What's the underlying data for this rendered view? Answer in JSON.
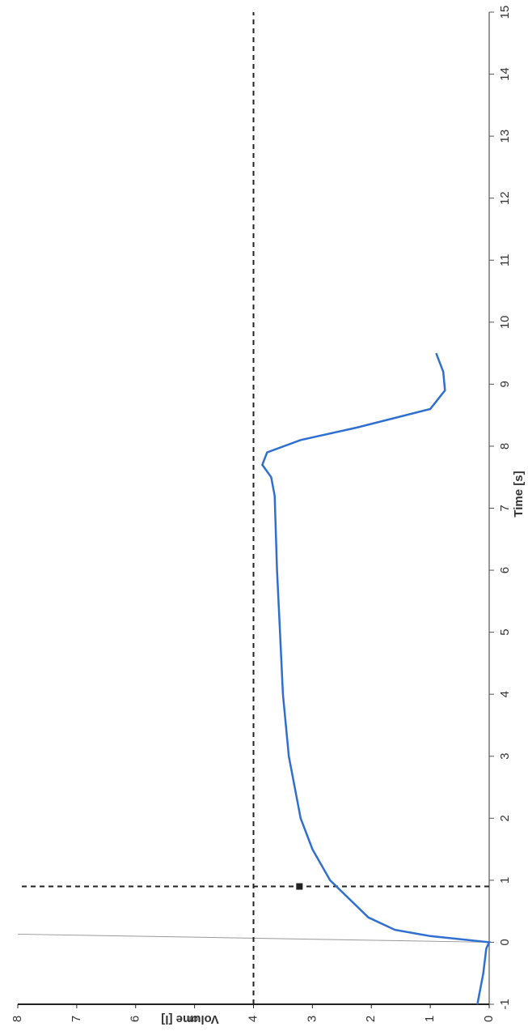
{
  "chart_data": {
    "type": "line",
    "x_label": "Time [s]",
    "y_label": "Volume [l]",
    "xlim": [
      -1,
      15
    ],
    "xticks": [
      -1,
      0,
      1,
      2,
      3,
      4,
      5,
      6,
      7,
      8,
      9,
      10,
      11,
      12,
      13,
      14,
      15
    ],
    "ylim": [
      0,
      8
    ],
    "yticks": [
      0,
      1,
      2,
      3,
      4,
      5,
      6,
      7,
      8
    ],
    "series": [
      {
        "name": "Volume",
        "color": "#2f6fd0",
        "x": [
          -1,
          -0.5,
          -0.1,
          0,
          0.1,
          0.2,
          0.4,
          1,
          1.5,
          2,
          3,
          4,
          5,
          6,
          7.2,
          7.5,
          7.7,
          7.9,
          8.1,
          8.3,
          8.6,
          8.9,
          9.2,
          9.5
        ],
        "values": [
          0.2,
          0.1,
          0.05,
          0,
          1.0,
          1.6,
          2.05,
          2.7,
          3.0,
          3.2,
          3.4,
          3.5,
          3.55,
          3.6,
          3.64,
          3.7,
          3.85,
          3.77,
          3.2,
          2.25,
          1.0,
          0.75,
          0.78,
          0.9
        ]
      }
    ],
    "reference_y": 4,
    "reference_x": 0.9,
    "zero_line_x": 0,
    "marker": {
      "x": 0.9,
      "y": 3.22
    }
  }
}
